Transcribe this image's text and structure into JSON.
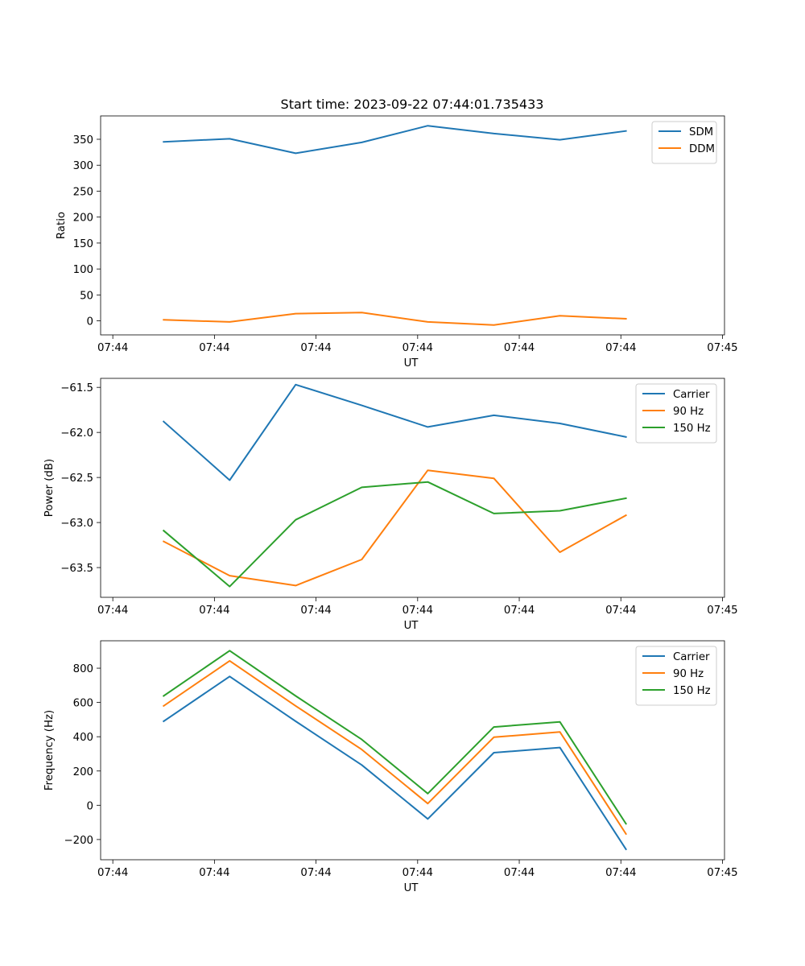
{
  "chart_data": [
    {
      "type": "line",
      "title": "Start time: 2023-09-22 07:44:01.735433",
      "xlabel": "UT",
      "ylabel": "Ratio",
      "x_tick_labels": [
        "07:44",
        "07:44",
        "07:44",
        "07:44",
        "07:44",
        "07:44",
        "07:45"
      ],
      "x_tick_values": [
        0,
        1,
        2,
        3,
        4,
        5,
        6
      ],
      "xlim": [
        -0.12,
        6.02
      ],
      "x": [
        0.5,
        1.15,
        1.8,
        2.45,
        3.1,
        3.75,
        4.4,
        5.05
      ],
      "ylim": [
        -27,
        395
      ],
      "y_ticks": [
        0,
        50,
        100,
        150,
        200,
        250,
        300,
        350
      ],
      "legend_position": "top-right",
      "series": [
        {
          "name": "SDM",
          "color": "#1f77b4",
          "values": [
            345,
            351,
            323,
            344,
            376,
            361,
            349,
            366
          ]
        },
        {
          "name": "DDM",
          "color": "#ff7f0e",
          "values": [
            2,
            -2,
            14,
            16,
            -2,
            -8,
            10,
            4
          ]
        }
      ]
    },
    {
      "type": "line",
      "title": "",
      "xlabel": "UT",
      "ylabel": "Power (dB)",
      "x_tick_labels": [
        "07:44",
        "07:44",
        "07:44",
        "07:44",
        "07:44",
        "07:44",
        "07:45"
      ],
      "x_tick_values": [
        0,
        1,
        2,
        3,
        4,
        5,
        6
      ],
      "xlim": [
        -0.12,
        6.02
      ],
      "x": [
        0.5,
        1.15,
        1.8,
        2.45,
        3.1,
        3.75,
        4.4,
        5.05
      ],
      "ylim": [
        -63.83,
        -61.4
      ],
      "y_ticks": [
        -63.5,
        -63.0,
        -62.5,
        -62.0,
        -61.5
      ],
      "y_tick_labels": [
        "−63.5",
        "−63.0",
        "−62.5",
        "−62.0",
        "−61.5"
      ],
      "legend_position": "top-right",
      "series": [
        {
          "name": "Carrier",
          "color": "#1f77b4",
          "values": [
            -61.88,
            -62.53,
            -61.47,
            -61.7,
            -61.94,
            -61.81,
            -61.9,
            -62.05
          ]
        },
        {
          "name": "90 Hz",
          "color": "#ff7f0e",
          "values": [
            -63.21,
            -63.59,
            -63.7,
            -63.41,
            -62.42,
            -62.51,
            -63.33,
            -62.92
          ]
        },
        {
          "name": "150 Hz",
          "color": "#2ca02c",
          "values": [
            -63.09,
            -63.71,
            -62.97,
            -62.61,
            -62.55,
            -62.9,
            -62.87,
            -62.73
          ]
        }
      ]
    },
    {
      "type": "line",
      "title": "",
      "xlabel": "UT",
      "ylabel": "Frequency (Hz)",
      "x_tick_labels": [
        "07:44",
        "07:44",
        "07:44",
        "07:44",
        "07:44",
        "07:44",
        "07:45"
      ],
      "x_tick_values": [
        0,
        1,
        2,
        3,
        4,
        5,
        6
      ],
      "xlim": [
        -0.12,
        6.02
      ],
      "x": [
        0.5,
        1.15,
        1.8,
        2.45,
        3.1,
        3.75,
        4.4,
        5.05
      ],
      "ylim": [
        -318,
        960
      ],
      "y_ticks": [
        -200,
        0,
        200,
        400,
        600,
        800
      ],
      "y_tick_labels": [
        "−200",
        "0",
        "200",
        "400",
        "600",
        "800"
      ],
      "legend_position": "top-right",
      "series": [
        {
          "name": "Carrier",
          "color": "#1f77b4",
          "values": [
            490,
            752,
            490,
            235,
            -80,
            307,
            337,
            -257
          ]
        },
        {
          "name": "90 Hz",
          "color": "#ff7f0e",
          "values": [
            580,
            843,
            580,
            325,
            10,
            397,
            428,
            -167
          ]
        },
        {
          "name": "150 Hz",
          "color": "#2ca02c",
          "values": [
            638,
            902,
            638,
            384,
            68,
            457,
            487,
            -108
          ]
        }
      ]
    }
  ]
}
